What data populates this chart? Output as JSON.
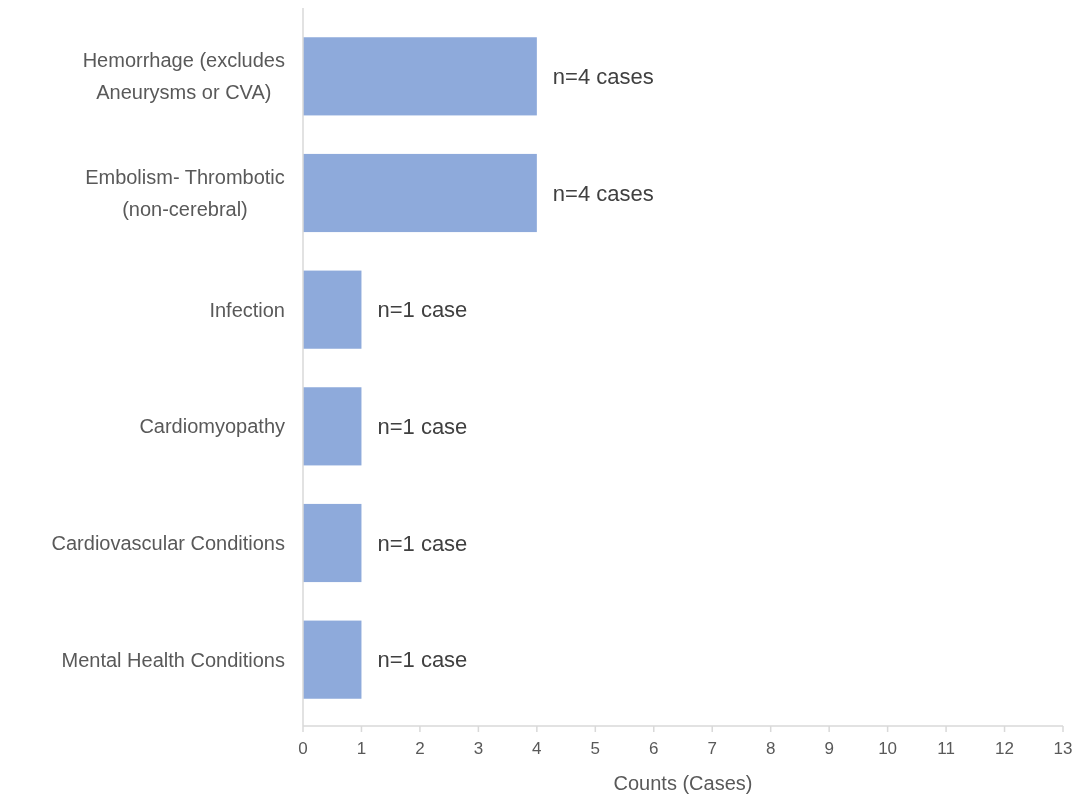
{
  "chart_data": {
    "type": "bar",
    "orientation": "horizontal",
    "xlabel": "Counts (Cases)",
    "categories": [
      "Hemorrhage (excludes Aneurysms or CVA)",
      "Embolism- Thrombotic (non-cerebral)",
      "Infection",
      "Cardiomyopathy",
      "Cardiovascular Conditions",
      "Mental Health Conditions"
    ],
    "values": [
      4,
      4,
      1,
      1,
      1,
      1
    ],
    "value_labels": [
      "n=4 cases",
      "n=4 cases",
      "n=1 case",
      "n=1 case",
      "n=1 case",
      "n=1 case"
    ],
    "color": "#8eaadb",
    "xlim": [
      0,
      13
    ],
    "xticks": [
      0,
      1,
      2,
      3,
      4,
      5,
      6,
      7,
      8,
      9,
      10,
      11,
      12,
      13
    ],
    "grid": false
  }
}
